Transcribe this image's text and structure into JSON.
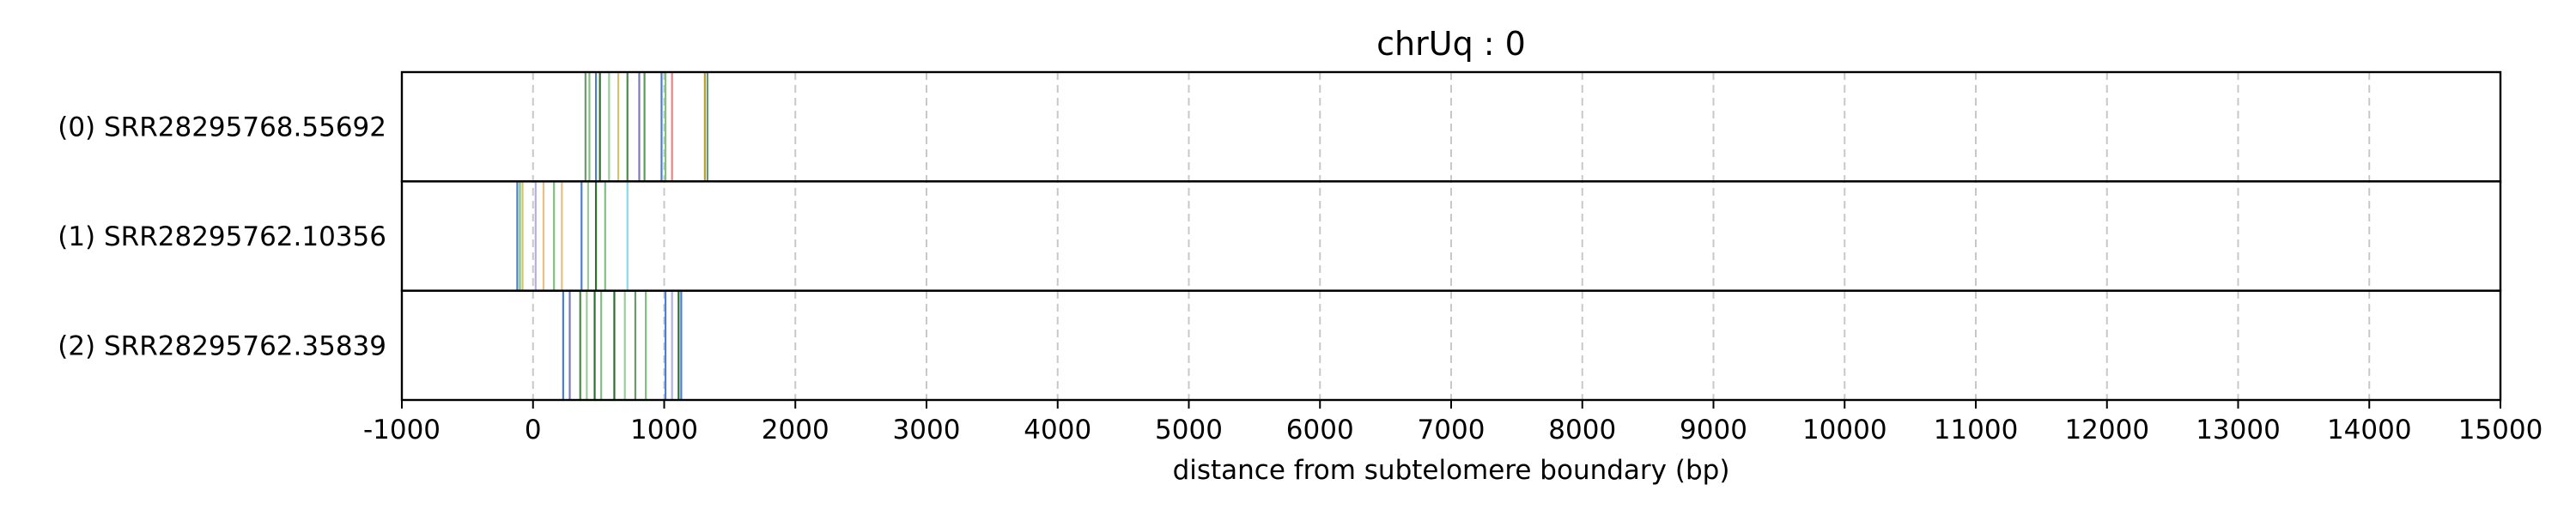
{
  "chart_data": {
    "type": "event-track",
    "title": "chrUq : 0",
    "xlabel": "distance from subtelomere boundary (bp)",
    "xlim": [
      -1000,
      15000
    ],
    "xticks": [
      -1000,
      0,
      1000,
      2000,
      3000,
      4000,
      5000,
      6000,
      7000,
      8000,
      9000,
      10000,
      11000,
      12000,
      13000,
      14000,
      15000
    ],
    "xtick_labels": [
      "-1000",
      "0",
      "1000",
      "2000",
      "3000",
      "4000",
      "5000",
      "6000",
      "7000",
      "8000",
      "9000",
      "10000",
      "11000",
      "12000",
      "13000",
      "14000",
      "15000"
    ],
    "grid": "vertical dashed",
    "rows": [
      {
        "label": "(0) SRR28295768.55692",
        "marks": [
          {
            "x": 400,
            "color": "#6b9a6b"
          },
          {
            "x": 430,
            "color": "#7fbf7f"
          },
          {
            "x": 480,
            "color": "#4c7fd4"
          },
          {
            "x": 510,
            "color": "#2e6e2e"
          },
          {
            "x": 580,
            "color": "#9acd9a"
          },
          {
            "x": 650,
            "color": "#d9c36a"
          },
          {
            "x": 720,
            "color": "#4a8a4a"
          },
          {
            "x": 810,
            "color": "#7a7ab8"
          },
          {
            "x": 850,
            "color": "#5a9a5a"
          },
          {
            "x": 980,
            "color": "#4c7fd4"
          },
          {
            "x": 1010,
            "color": "#7fbf7f"
          },
          {
            "x": 1060,
            "color": "#f08080"
          },
          {
            "x": 1310,
            "color": "#b8a030"
          },
          {
            "x": 1330,
            "color": "#6b9a6b"
          }
        ]
      },
      {
        "label": "(1) SRR28295762.10356",
        "marks": [
          {
            "x": -120,
            "color": "#4c7fd4"
          },
          {
            "x": -100,
            "color": "#7fbf7f"
          },
          {
            "x": -80,
            "color": "#d9c36a"
          },
          {
            "x": 20,
            "color": "#b0b0e8"
          },
          {
            "x": 80,
            "color": "#e8c080"
          },
          {
            "x": 160,
            "color": "#7fbf7f"
          },
          {
            "x": 220,
            "color": "#e8c080"
          },
          {
            "x": 370,
            "color": "#4c7fd4"
          },
          {
            "x": 420,
            "color": "#9acd9a"
          },
          {
            "x": 480,
            "color": "#2e6e2e"
          },
          {
            "x": 550,
            "color": "#7fbf7f"
          },
          {
            "x": 720,
            "color": "#7fdfe8"
          }
        ]
      },
      {
        "label": "(2) SRR28295762.35839",
        "marks": [
          {
            "x": 230,
            "color": "#4c7fd4"
          },
          {
            "x": 280,
            "color": "#7a7ab8"
          },
          {
            "x": 360,
            "color": "#4a8a4a"
          },
          {
            "x": 410,
            "color": "#9acd9a"
          },
          {
            "x": 470,
            "color": "#2e6e2e"
          },
          {
            "x": 520,
            "color": "#7fbf7f"
          },
          {
            "x": 620,
            "color": "#2e6e2e"
          },
          {
            "x": 700,
            "color": "#9acd9a"
          },
          {
            "x": 780,
            "color": "#6b9a6b"
          },
          {
            "x": 860,
            "color": "#7fbf7f"
          },
          {
            "x": 1010,
            "color": "#4c7fd4"
          },
          {
            "x": 1060,
            "color": "#b0b0e8"
          },
          {
            "x": 1110,
            "color": "#2e6e2e"
          },
          {
            "x": 1130,
            "color": "#4c7fd4"
          }
        ]
      }
    ]
  }
}
